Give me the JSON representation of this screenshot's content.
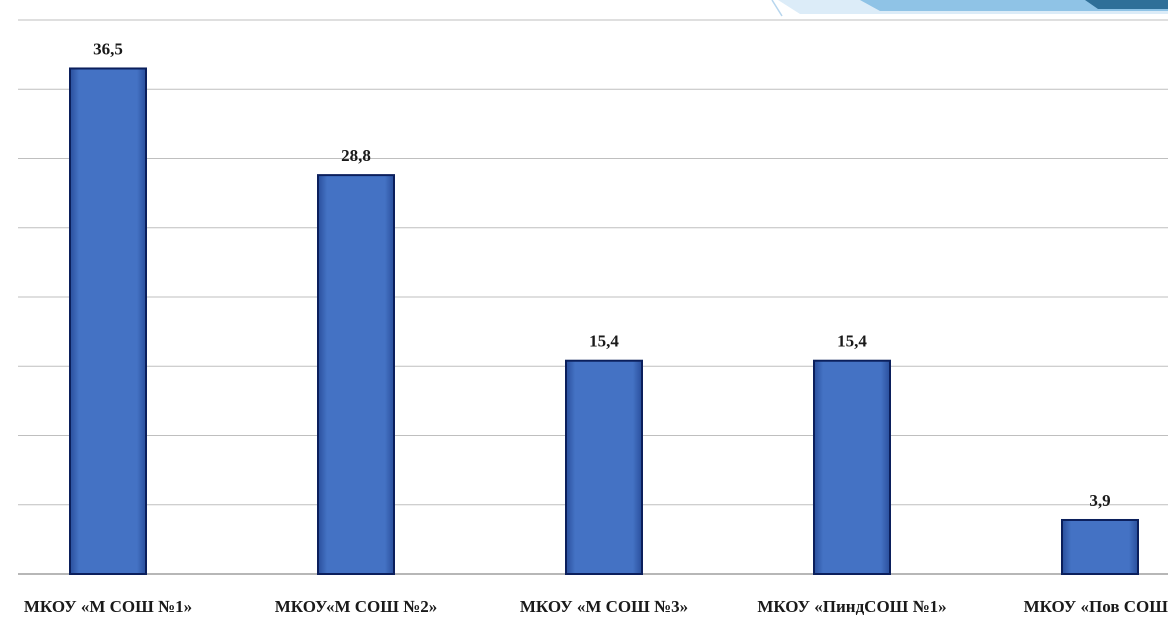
{
  "chart_data": {
    "type": "bar",
    "categories": [
      "МКОУ «М СОШ №1»",
      "МКОУ«М СОШ №2»",
      "МКОУ «М СОШ №3»",
      "МКОУ «ПиндСОШ №1»",
      "МКОУ «Пов СОШ»"
    ],
    "values": [
      36.5,
      28.8,
      15.4,
      15.4,
      3.9
    ],
    "value_labels": [
      "36,5",
      "28,8",
      "15,4",
      "15,4",
      "3,9"
    ],
    "title": "",
    "xlabel": "",
    "ylabel": "",
    "ylim": [
      0,
      40
    ],
    "y_tick_step": 5,
    "grid": true,
    "legend": "none",
    "colors": {
      "bar_fill": "#4472C4",
      "bar_edge": "#0b1f5c",
      "grid": "#bfbfbf",
      "decor_light": "#dcecf8",
      "decor_mid": "#8fc3e6",
      "decor_dark": "#2f6f98"
    }
  }
}
